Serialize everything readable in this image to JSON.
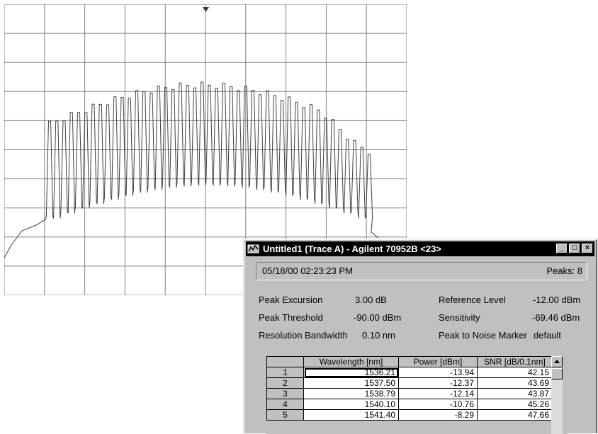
{
  "window": {
    "title": "Untitled1 (Trace A) - Agilent 70952B <23>",
    "controls": {
      "minimize": "_",
      "maximize": "□",
      "close": "×"
    }
  },
  "info": {
    "datetime": "05/18/00  02:23:23 PM",
    "peaks": "Peaks: 8"
  },
  "params": {
    "peak_excursion_label": "Peak Excursion",
    "peak_excursion_value": "3.00 dB",
    "peak_threshold_label": "Peak Threshold",
    "peak_threshold_value": "-90.00 dBm",
    "resolution_bw_label": "Resolution Bandwidth",
    "resolution_bw_value": "0.10 nm",
    "reference_level_label": "Reference Level",
    "reference_level_value": "-12.00 dBm",
    "sensitivity_label": "Sensitivity",
    "sensitivity_value": "-69.46 dBm",
    "peak_noise_label": "Peak to Noise Marker",
    "peak_noise_value": "default"
  },
  "table": {
    "headers": [
      "",
      "Wavelength [nm]",
      "Power [dBm]",
      "SNR [dB/0.1nm]"
    ],
    "rows": [
      {
        "n": "1",
        "wl": "1536.21",
        "pw": "-13.94",
        "snr": "42.15"
      },
      {
        "n": "2",
        "wl": "1537.50",
        "pw": "-12.37",
        "snr": "43.69"
      },
      {
        "n": "3",
        "wl": "1538.79",
        "pw": "-12.14",
        "snr": "43.87"
      },
      {
        "n": "4",
        "wl": "1540.10",
        "pw": "-10.76",
        "snr": "45.26"
      },
      {
        "n": "5",
        "wl": "1541.40",
        "pw": "-8.29",
        "snr": "47.66"
      }
    ]
  },
  "trace": {
    "grid_divisions": [
      10,
      10
    ],
    "channel_count": 45,
    "line_color": "#404040",
    "grid_color": "#808080"
  }
}
